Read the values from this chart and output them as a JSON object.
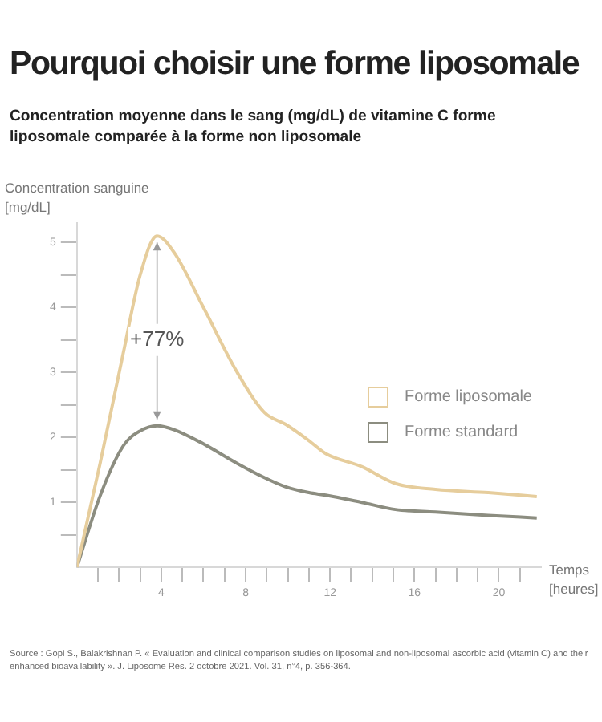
{
  "chart_data": {
    "type": "line",
    "title": "Pourquoi choisir une forme liposomale",
    "subtitle": "Concentration moyenne dans le sang (mg/dL) de vitamine C forme liposomale comparée à la forme non liposomale",
    "ylabel": "Concentration sanguine\n[mg/dL]",
    "xlabel": "Temps\n[heures]",
    "x": [
      0,
      1.1,
      2.2,
      3.0,
      3.8,
      4.6,
      6.0,
      7.6,
      8.9,
      9.9,
      11.0,
      11.8,
      13.5,
      15.1,
      17.0,
      19.5,
      21.8
    ],
    "series": [
      {
        "name": "Forme liposomale",
        "color": "#e6cd9c",
        "values": [
          0,
          1.6,
          3.3,
          4.5,
          5.1,
          4.85,
          4.0,
          3.0,
          2.38,
          2.2,
          1.95,
          1.75,
          1.55,
          1.29,
          1.2,
          1.15,
          1.09
        ]
      },
      {
        "name": "Forme standard",
        "color": "#8c8d80",
        "values": [
          0,
          1.1,
          1.87,
          2.1,
          2.18,
          2.12,
          1.9,
          1.6,
          1.38,
          1.24,
          1.15,
          1.11,
          1.0,
          0.89,
          0.85,
          0.8,
          0.76
        ]
      }
    ],
    "xlim": [
      0,
      22
    ],
    "ylim": [
      0,
      5.3
    ],
    "xticks": [
      {
        "value": 1,
        "label": null
      },
      {
        "value": 2,
        "label": null
      },
      {
        "value": 3,
        "label": null
      },
      4,
      {
        "value": 5,
        "label": null
      },
      {
        "value": 6,
        "label": null
      },
      {
        "value": 7,
        "label": null
      },
      8,
      {
        "value": 9,
        "label": null
      },
      {
        "value": 10,
        "label": null
      },
      {
        "value": 11,
        "label": null
      },
      12,
      {
        "value": 13,
        "label": null
      },
      {
        "value": 14,
        "label": null
      },
      {
        "value": 15,
        "label": null
      },
      16,
      {
        "value": 17,
        "label": null
      },
      {
        "value": 18,
        "label": null
      },
      {
        "value": 19,
        "label": null
      },
      20,
      {
        "value": 21,
        "label": null
      }
    ],
    "yticks": [
      {
        "value": 0.5,
        "label": null
      },
      1,
      {
        "value": 1.5,
        "label": null
      },
      2,
      {
        "value": 2.5,
        "label": null
      },
      3,
      {
        "value": 3.5,
        "label": null
      },
      4,
      {
        "value": 4.5,
        "label": null
      },
      5
    ],
    "grid": false,
    "legend": "right",
    "marker": "none",
    "line_style": "solid",
    "annotations": [
      {
        "text": "+77%",
        "x": 3.8,
        "y": 3.5
      },
      "Source : Gopi S., Balakrishnan P. « Evaluation and clinical comparison studies on liposomal and non-liposomal ascorbic acid (vitamin C) and their enhanced bioavailability ». J. Liposome Res. 2 octobre 2021. Vol. 31, n°4, p. 356-364."
    ]
  }
}
